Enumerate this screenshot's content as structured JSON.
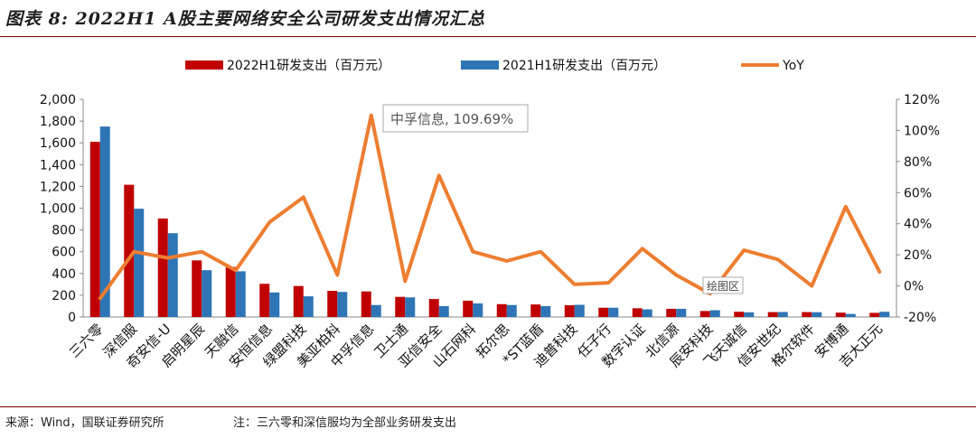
{
  "title": "图表 8:  2022H1  A股主要网络安全公司研发支出情况汇总",
  "source": "来源：Wind，国联证券研究所",
  "note": "注：三六零和深信服均为全部业务研发支出",
  "tooltip": "中孚信息, 109.69%",
  "plot_area_label": "绘图区",
  "colors": {
    "bar2022": "#c00000",
    "bar2021": "#2e75b6",
    "yoy": "#ed7d31"
  },
  "chart_data": {
    "type": "bar",
    "categories": [
      "三六零",
      "深信服",
      "奇安信-U",
      "启明星辰",
      "天融信",
      "安恒信息",
      "绿盟科技",
      "美亚柏科",
      "中孚信息",
      "卫士通",
      "亚信安全",
      "山石网科",
      "拓尔思",
      "*ST蓝盾",
      "迪普科技",
      "任子行",
      "数字认证",
      "北信源",
      "辰安科技",
      "飞天诚信",
      "信安世纪",
      "格尔软件",
      "安博通",
      "吉大正元"
    ],
    "series": [
      {
        "name": "2022H1研发支出（百万元）",
        "axis": "left",
        "type": "bar",
        "values": [
          1610,
          1215,
          905,
          520,
          460,
          305,
          285,
          240,
          235,
          185,
          165,
          150,
          118,
          115,
          108,
          85,
          80,
          75,
          55,
          48,
          45,
          45,
          40,
          38
        ]
      },
      {
        "name": "2021H1研发支出（百万元）",
        "axis": "left",
        "type": "bar",
        "values": [
          1750,
          995,
          770,
          430,
          420,
          225,
          190,
          230,
          110,
          180,
          100,
          125,
          110,
          100,
          112,
          85,
          70,
          75,
          62,
          43,
          46,
          44,
          28,
          48
        ]
      },
      {
        "name": "YoY",
        "axis": "right",
        "type": "line",
        "values": [
          -8,
          22,
          18,
          22,
          10,
          41,
          57,
          7,
          109.69,
          3,
          71,
          22,
          16,
          22,
          1,
          2,
          24,
          7,
          -5,
          23,
          17,
          0,
          51,
          9
        ]
      }
    ],
    "ylim_left": [
      0,
      2000
    ],
    "yticks_left": [
      "0",
      "200",
      "400",
      "600",
      "800",
      "1,000",
      "1,200",
      "1,400",
      "1,600",
      "1,800",
      "2,000"
    ],
    "ylim_right": [
      -20,
      120
    ],
    "yticks_right": [
      "-20%",
      "0%",
      "20%",
      "40%",
      "60%",
      "80%",
      "100%",
      "120%"
    ],
    "legend_position": "top",
    "grid": false
  }
}
